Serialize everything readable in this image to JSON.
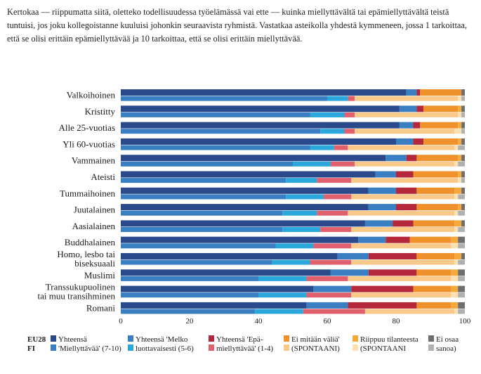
{
  "question": "Kertokaa — riippumatta siitä, oletteko todellisuudessa työelämässä vai ette — kuinka miellyttävältä tai epämiellyttävältä teistä tuntuisi, jos joku kollegoistanne kuuluisi johonkin seuraavista ryhmistä. Vastatkaa asteikolla yhdestä kymmeneen, jossa 1 tarkoittaa, että se olisi erittäin epämiellyttävää ja 10 tarkoittaa, että se olisi erittäin miellyttävää.",
  "chart_data": {
    "type": "bar",
    "orientation": "horizontal",
    "stacked": true,
    "xlim": [
      0,
      100
    ],
    "xticks": [
      "0",
      "20",
      "40",
      "60",
      "80",
      "100"
    ],
    "grid": false,
    "row_labels": [
      "EU28",
      "FI"
    ],
    "categories": [
      [
        "Valkoihoinen"
      ],
      [
        "Kristitty"
      ],
      [
        "Alle 25-vuotias"
      ],
      [
        "Yli 60-vuotias"
      ],
      [
        "Vammainen"
      ],
      [
        "Ateisti"
      ],
      [
        "Tummaihoinen"
      ],
      [
        "Juutalainen"
      ],
      [
        "Aasialainen"
      ],
      [
        "Buddhalainen"
      ],
      [
        "Homo, lesbo tai",
        "biseksuaali"
      ],
      [
        "Muslimi"
      ],
      [
        "Transsukupuolinen",
        "tai muu transihminen"
      ],
      [
        "Romani"
      ]
    ],
    "series": [
      {
        "name": "Yhteensä 'Miellyttävää' (7-10)",
        "color_eu": "#2a4a8c",
        "color_fi": "#3a7fc1",
        "eu": [
          83,
          81,
          81,
          80,
          77,
          74,
          72,
          72,
          71,
          69,
          63,
          61,
          56,
          54
        ],
        "fi": [
          60,
          55,
          58,
          55,
          50,
          48,
          48,
          47,
          47,
          45,
          44,
          40,
          40,
          39
        ]
      },
      {
        "name": "Yhteensä 'Melko luottavaisesti (5-6)",
        "color_eu": "#3a7fc1",
        "color_fi": "#2aa8dc",
        "eu": [
          3,
          5,
          4,
          5,
          6,
          6,
          8,
          8,
          8,
          8,
          9,
          11,
          11,
          12
        ],
        "fi": [
          6,
          10,
          7,
          7,
          11,
          9,
          11,
          10,
          11,
          11,
          11,
          14,
          14,
          14
        ]
      },
      {
        "name": "Yhteensä 'Epämiellyttävää' (1-4)",
        "color_eu": "#b5283b",
        "color_fi": "#e0606e",
        "eu": [
          1,
          2,
          2,
          3,
          3,
          5,
          6,
          6,
          6,
          7,
          14,
          14,
          18,
          20
        ],
        "fi": [
          2,
          3,
          3,
          4,
          7,
          10,
          8,
          9,
          9,
          11,
          12,
          12,
          13,
          18
        ]
      },
      {
        "name": "Ei mitään väliä' (SPONTAANI)",
        "color_eu": "#f0922b",
        "color_fi": "#f9c98a",
        "eu": [
          12,
          10,
          11,
          10,
          12,
          13,
          11,
          12,
          12,
          12,
          11,
          10,
          11,
          10
        ],
        "fi": [
          30,
          30,
          29,
          31,
          29,
          31,
          30,
          31,
          30,
          29,
          30,
          30,
          29,
          26
        ]
      },
      {
        "name": "Riippuu tilanteesta (SPONTAANI)",
        "color_eu": "#f5a93a",
        "color_fi": "#fae0b0",
        "eu": [
          0,
          1,
          1,
          1,
          1,
          1,
          2,
          1,
          2,
          2,
          2,
          2,
          2,
          2
        ],
        "fi": [
          1,
          1,
          2,
          1,
          1,
          1,
          1,
          1,
          1,
          2,
          1,
          2,
          2,
          1
        ]
      },
      {
        "name": "Ei osaa sanoa)",
        "color_eu": "#6e6e6e",
        "color_fi": "#b0b0b0",
        "eu": [
          1,
          1,
          1,
          1,
          1,
          1,
          1,
          1,
          1,
          2,
          1,
          2,
          2,
          2
        ],
        "fi": [
          1,
          1,
          1,
          2,
          2,
          1,
          2,
          2,
          2,
          2,
          2,
          2,
          2,
          2
        ]
      }
    ],
    "legend": [
      [
        "Yhteensä",
        "'Miellyttävää' (7-10)"
      ],
      [
        "Yhteensä 'Melko",
        "luottavaisesti (5-6)"
      ],
      [
        "Yhteensä 'Epä-",
        "miellyttävää' (1-4)"
      ],
      [
        "Ei mitään väliä'",
        "(SPONTAANI)"
      ],
      [
        "Riippuu tilanteesta",
        "(SPONTAANI"
      ],
      [
        "Ei osaa",
        "sanoa)"
      ]
    ],
    "legend_placement": "bottom"
  }
}
